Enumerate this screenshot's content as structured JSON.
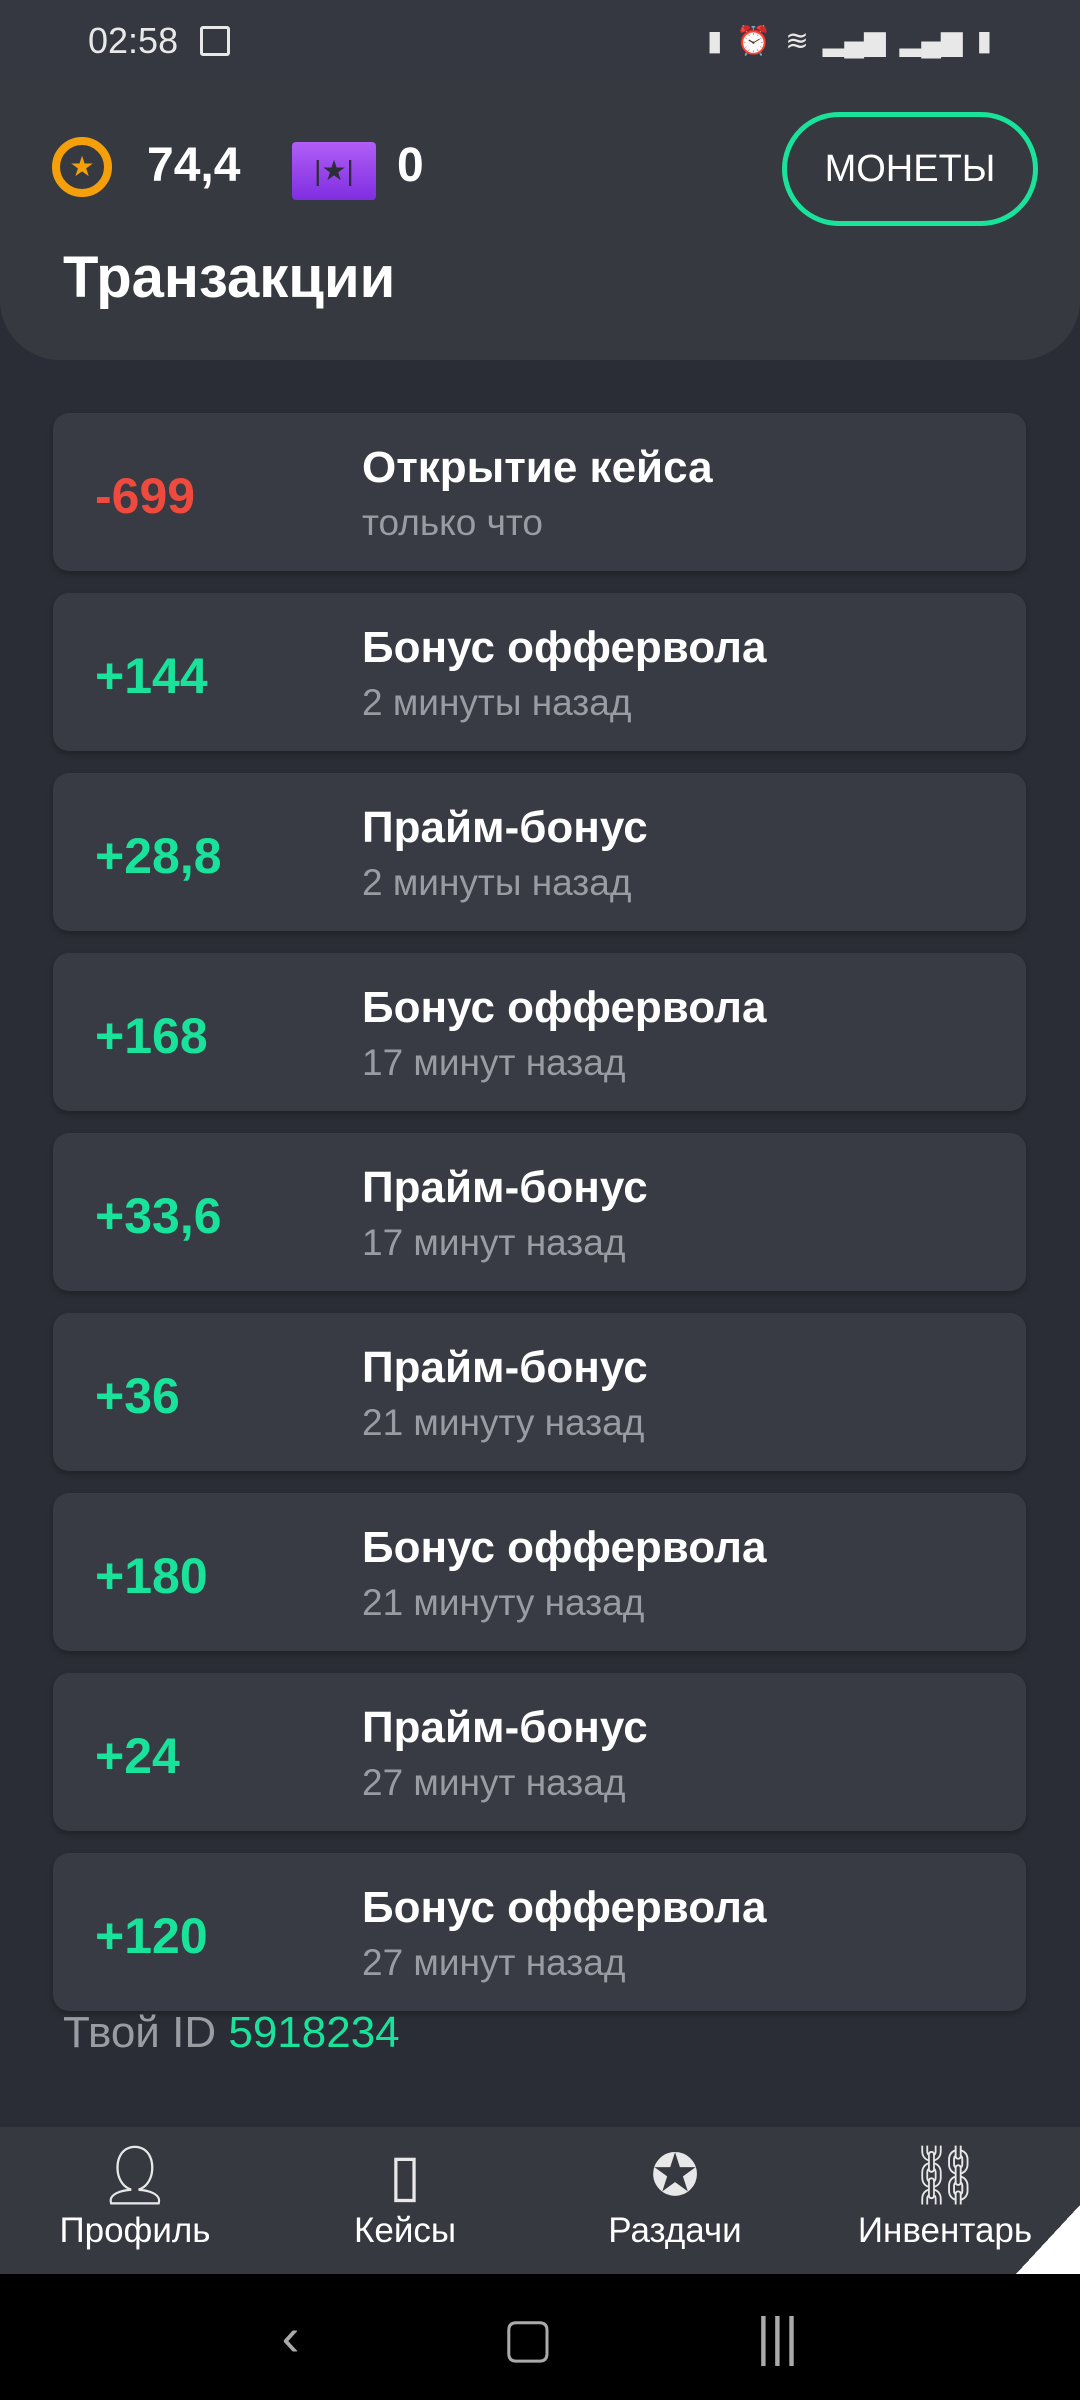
{
  "status_bar": {
    "time": "02:58",
    "icons": [
      "gallery-icon",
      "sd-card-icon",
      "alarm-icon",
      "wifi-icon",
      "signal-icon",
      "signal-icon",
      "battery-icon"
    ]
  },
  "header": {
    "coin_balance": "74,4",
    "ticket_balance": "0",
    "coins_button": "МОНЕТЫ",
    "title": "Транзакции"
  },
  "colors": {
    "positive": "#19e39a",
    "negative": "#f04a3e",
    "coin": "#f5a00a",
    "ticket": "#9b45f0"
  },
  "transactions": [
    {
      "amount": "-699",
      "type": "negative",
      "title": "Открытие кейса",
      "time": "только что"
    },
    {
      "amount": "+144",
      "type": "positive",
      "title": "Бонус оффервола",
      "time": "2 минуты назад"
    },
    {
      "amount": "+28,8",
      "type": "positive",
      "title": "Прайм-бонус",
      "time": "2 минуты назад"
    },
    {
      "amount": "+168",
      "type": "positive",
      "title": "Бонус оффервола",
      "time": "17 минут назад"
    },
    {
      "amount": "+33,6",
      "type": "positive",
      "title": "Прайм-бонус",
      "time": "17 минут назад"
    },
    {
      "amount": "+36",
      "type": "positive",
      "title": "Прайм-бонус",
      "time": "21 минуту назад"
    },
    {
      "amount": "+180",
      "type": "positive",
      "title": "Бонус оффервола",
      "time": "21 минуту назад"
    },
    {
      "amount": "+24",
      "type": "positive",
      "title": "Прайм-бонус",
      "time": "27 минут назад"
    },
    {
      "amount": "+120",
      "type": "positive",
      "title": "Бонус оффервола",
      "time": "27 минут назад"
    }
  ],
  "user": {
    "id_label": "Твой ID",
    "id": "5918234"
  },
  "nav": [
    {
      "label": "Профиль",
      "icon": "person-icon"
    },
    {
      "label": "Кейсы",
      "icon": "case-icon"
    },
    {
      "label": "Раздачи",
      "icon": "medal-icon"
    },
    {
      "label": "Инвентарь",
      "icon": "inventory-icon"
    }
  ]
}
